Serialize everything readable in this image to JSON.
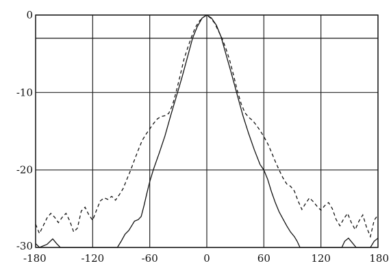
{
  "chart_data": {
    "type": "line",
    "title": "",
    "xlabel": "",
    "ylabel": "",
    "xlim": [
      -180,
      180
    ],
    "ylim": [
      -30,
      0
    ],
    "grid": true,
    "x_ticks": [
      -180,
      -120,
      -60,
      0,
      60,
      120,
      180
    ],
    "x_tick_labels": [
      "-180",
      "-120",
      "-60",
      "0",
      "60",
      "120",
      "180"
    ],
    "y_ticks": [
      0,
      -10,
      -20,
      -30
    ],
    "y_tick_labels": [
      "0",
      "-10",
      "-20",
      "-30"
    ],
    "reference_line_y": -3,
    "series": [
      {
        "style": "solid",
        "points": [
          [
            -180,
            -29.5
          ],
          [
            -176,
            -30
          ],
          [
            -168,
            -29.6
          ],
          [
            -162,
            -28.9
          ],
          [
            -158,
            -29.5
          ],
          [
            -154,
            -30
          ],
          [
            -94,
            -30
          ],
          [
            -90,
            -29.2
          ],
          [
            -86,
            -28.3
          ],
          [
            -82,
            -27.8
          ],
          [
            -79,
            -27.2
          ],
          [
            -76,
            -26.6
          ],
          [
            -72,
            -26.4
          ],
          [
            -69,
            -26
          ],
          [
            -66,
            -24.6
          ],
          [
            -63,
            -23
          ],
          [
            -60,
            -21.5
          ],
          [
            -56,
            -19.9
          ],
          [
            -50,
            -17.8
          ],
          [
            -44,
            -15.6
          ],
          [
            -38,
            -13
          ],
          [
            -32,
            -10.5
          ],
          [
            -26,
            -8
          ],
          [
            -20,
            -5.3
          ],
          [
            -15,
            -3
          ],
          [
            -10,
            -1.5
          ],
          [
            -5,
            -0.4
          ],
          [
            0,
            0
          ],
          [
            5,
            -0.4
          ],
          [
            10,
            -1.3
          ],
          [
            15,
            -2.8
          ],
          [
            20,
            -5
          ],
          [
            26,
            -7.6
          ],
          [
            32,
            -10.3
          ],
          [
            38,
            -13
          ],
          [
            44,
            -15.3
          ],
          [
            50,
            -17.4
          ],
          [
            56,
            -19.3
          ],
          [
            60,
            -20
          ],
          [
            64,
            -21.2
          ],
          [
            68,
            -22.8
          ],
          [
            72,
            -24.2
          ],
          [
            76,
            -25.4
          ],
          [
            80,
            -26.3
          ],
          [
            84,
            -27.2
          ],
          [
            88,
            -28
          ],
          [
            92,
            -28.6
          ],
          [
            95,
            -29.2
          ],
          [
            98,
            -30
          ],
          [
            142,
            -30
          ],
          [
            145,
            -29.2
          ],
          [
            149,
            -28.8
          ],
          [
            153,
            -29.4
          ],
          [
            157,
            -30
          ],
          [
            172,
            -30
          ],
          [
            176,
            -29.2
          ],
          [
            180,
            -28.8
          ]
        ]
      },
      {
        "style": "dashed",
        "points": [
          [
            -180,
            -27
          ],
          [
            -176,
            -28.2
          ],
          [
            -172,
            -27.2
          ],
          [
            -168,
            -26.2
          ],
          [
            -164,
            -25.6
          ],
          [
            -160,
            -26.1
          ],
          [
            -156,
            -26.8
          ],
          [
            -152,
            -26.1
          ],
          [
            -148,
            -25.6
          ],
          [
            -144,
            -26.6
          ],
          [
            -140,
            -28
          ],
          [
            -136,
            -27.5
          ],
          [
            -132,
            -25.3
          ],
          [
            -128,
            -24.8
          ],
          [
            -124,
            -25.8
          ],
          [
            -120,
            -26.5
          ],
          [
            -116,
            -25.2
          ],
          [
            -112,
            -24
          ],
          [
            -108,
            -23.6
          ],
          [
            -104,
            -23.8
          ],
          [
            -100,
            -23.4
          ],
          [
            -96,
            -23.9
          ],
          [
            -92,
            -23.2
          ],
          [
            -88,
            -22.4
          ],
          [
            -84,
            -21.2
          ],
          [
            -80,
            -20
          ],
          [
            -76,
            -18.7
          ],
          [
            -72,
            -17.4
          ],
          [
            -68,
            -16.2
          ],
          [
            -64,
            -15.4
          ],
          [
            -60,
            -14.7
          ],
          [
            -56,
            -14
          ],
          [
            -52,
            -13.4
          ],
          [
            -48,
            -13.1
          ],
          [
            -44,
            -13
          ],
          [
            -40,
            -12.7
          ],
          [
            -36,
            -11.6
          ],
          [
            -32,
            -9.8
          ],
          [
            -28,
            -7.8
          ],
          [
            -24,
            -5.7
          ],
          [
            -20,
            -4.2
          ],
          [
            -16,
            -2.8
          ],
          [
            -12,
            -1.6
          ],
          [
            -8,
            -0.8
          ],
          [
            -4,
            -0.3
          ],
          [
            0,
            0
          ],
          [
            4,
            -0.4
          ],
          [
            8,
            -1
          ],
          [
            12,
            -2
          ],
          [
            16,
            -3
          ],
          [
            20,
            -4.3
          ],
          [
            24,
            -5.8
          ],
          [
            28,
            -7.7
          ],
          [
            32,
            -9.7
          ],
          [
            36,
            -11.4
          ],
          [
            40,
            -12.6
          ],
          [
            44,
            -13.2
          ],
          [
            48,
            -13.6
          ],
          [
            52,
            -14.2
          ],
          [
            56,
            -14.9
          ],
          [
            60,
            -15.7
          ],
          [
            64,
            -16.6
          ],
          [
            68,
            -17.7
          ],
          [
            72,
            -18.9
          ],
          [
            76,
            -20
          ],
          [
            80,
            -21
          ],
          [
            84,
            -21.8
          ],
          [
            88,
            -22.1
          ],
          [
            92,
            -22.7
          ],
          [
            96,
            -24
          ],
          [
            100,
            -25.1
          ],
          [
            104,
            -24.3
          ],
          [
            108,
            -23.6
          ],
          [
            112,
            -24.1
          ],
          [
            116,
            -24.7
          ],
          [
            120,
            -25.2
          ],
          [
            124,
            -24.6
          ],
          [
            128,
            -24.2
          ],
          [
            132,
            -25
          ],
          [
            136,
            -26.4
          ],
          [
            140,
            -27.2
          ],
          [
            144,
            -26.3
          ],
          [
            148,
            -25.6
          ],
          [
            152,
            -26.8
          ],
          [
            156,
            -27.7
          ],
          [
            160,
            -26.6
          ],
          [
            164,
            -25.8
          ],
          [
            168,
            -27.4
          ],
          [
            172,
            -28.6
          ],
          [
            176,
            -26.5
          ],
          [
            180,
            -25.8
          ]
        ]
      }
    ]
  }
}
